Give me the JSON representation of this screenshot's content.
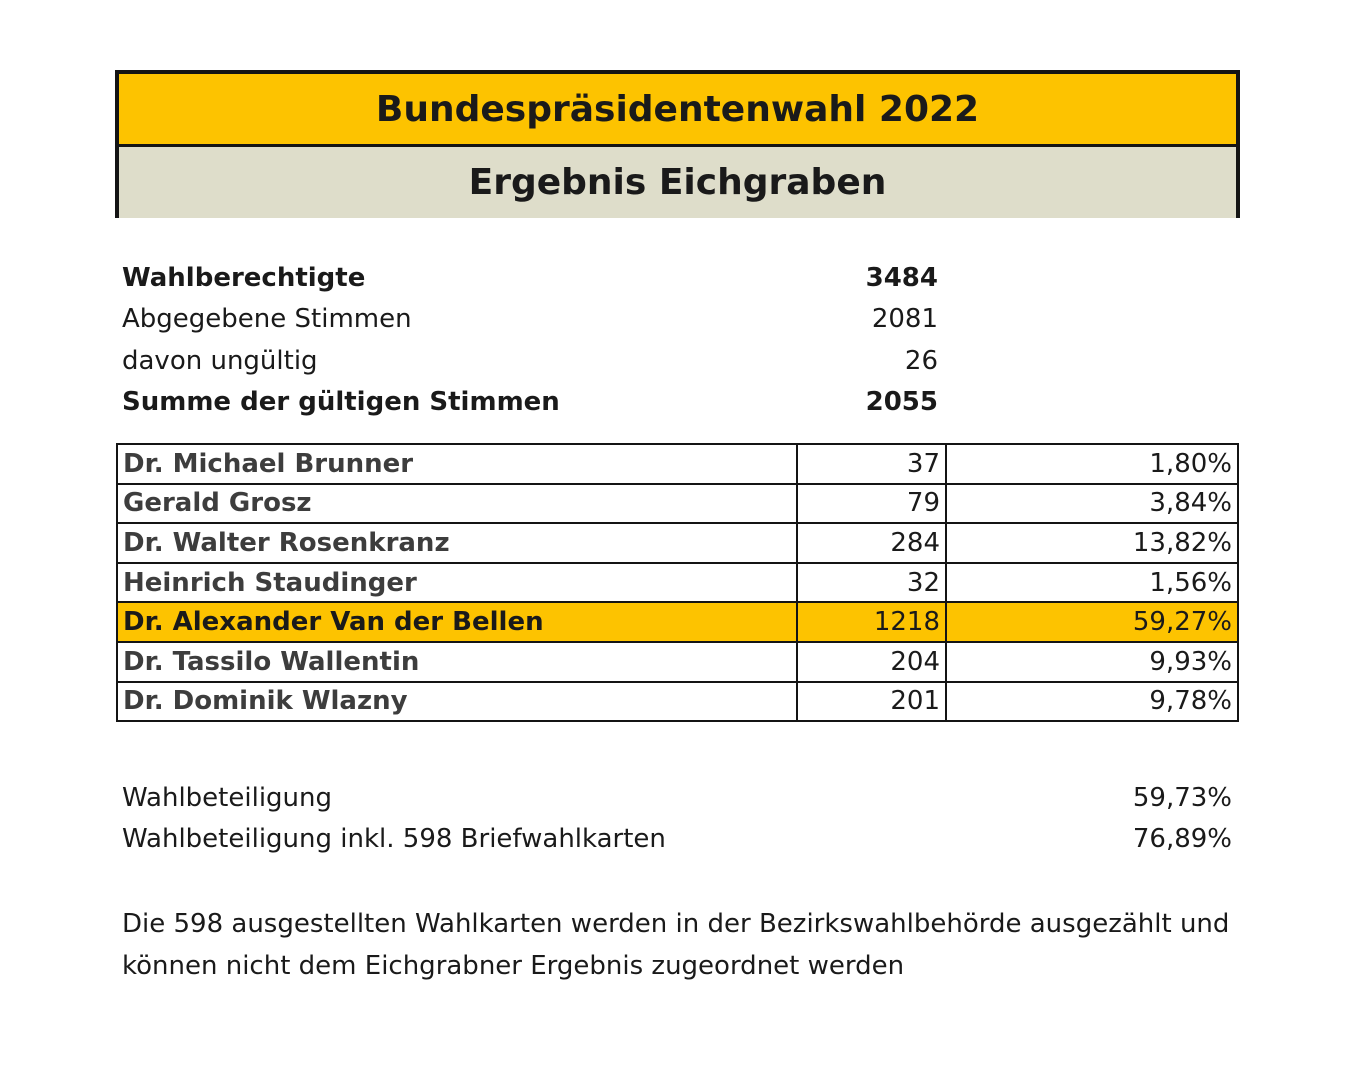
{
  "header": {
    "title": "Bundespräsidentenwahl 2022",
    "subtitle": "Ergebnis Eichgraben"
  },
  "summary": [
    {
      "label": "Wahlberechtigte",
      "value": "3484",
      "bold": true
    },
    {
      "label": "Abgegebene Stimmen",
      "value": "2081",
      "bold": false
    },
    {
      "label": "davon ungültig",
      "value": "26",
      "bold": false
    },
    {
      "label": "Summe der gültigen Stimmen",
      "value": "2055",
      "bold": true
    }
  ],
  "candidates": [
    {
      "name": "Dr. Michael Brunner",
      "votes": "37",
      "percent": "1,80%",
      "highlight": false
    },
    {
      "name": "Gerald Grosz",
      "votes": "79",
      "percent": "3,84%",
      "highlight": false
    },
    {
      "name": "Dr. Walter Rosenkranz",
      "votes": "284",
      "percent": "13,82%",
      "highlight": false
    },
    {
      "name": "Heinrich Staudinger",
      "votes": "32",
      "percent": "1,56%",
      "highlight": false
    },
    {
      "name": "Dr. Alexander Van der Bellen",
      "votes": "1218",
      "percent": "59,27%",
      "highlight": true
    },
    {
      "name": "Dr. Tassilo Wallentin",
      "votes": "204",
      "percent": "9,93%",
      "highlight": false
    },
    {
      "name": "Dr. Dominik Wlazny",
      "votes": "201",
      "percent": "9,78%",
      "highlight": false
    }
  ],
  "turnout": [
    {
      "label": "Wahlbeteiligung",
      "value": "59,73%"
    },
    {
      "label": "Wahlbeteiligung inkl. 598 Briefwahlkarten",
      "value": "76,89%"
    }
  ],
  "note": {
    "line1": "Die 598 ausgestellten Wahlkarten werden in der Bezirkswahlbehörde ausgezählt und",
    "line2": "können nicht dem Eichgrabner Ergebnis zugeordnet werden"
  },
  "colors": {
    "accent": "#fdc300",
    "subtitle_band": "#deddca",
    "border": "#141414"
  }
}
